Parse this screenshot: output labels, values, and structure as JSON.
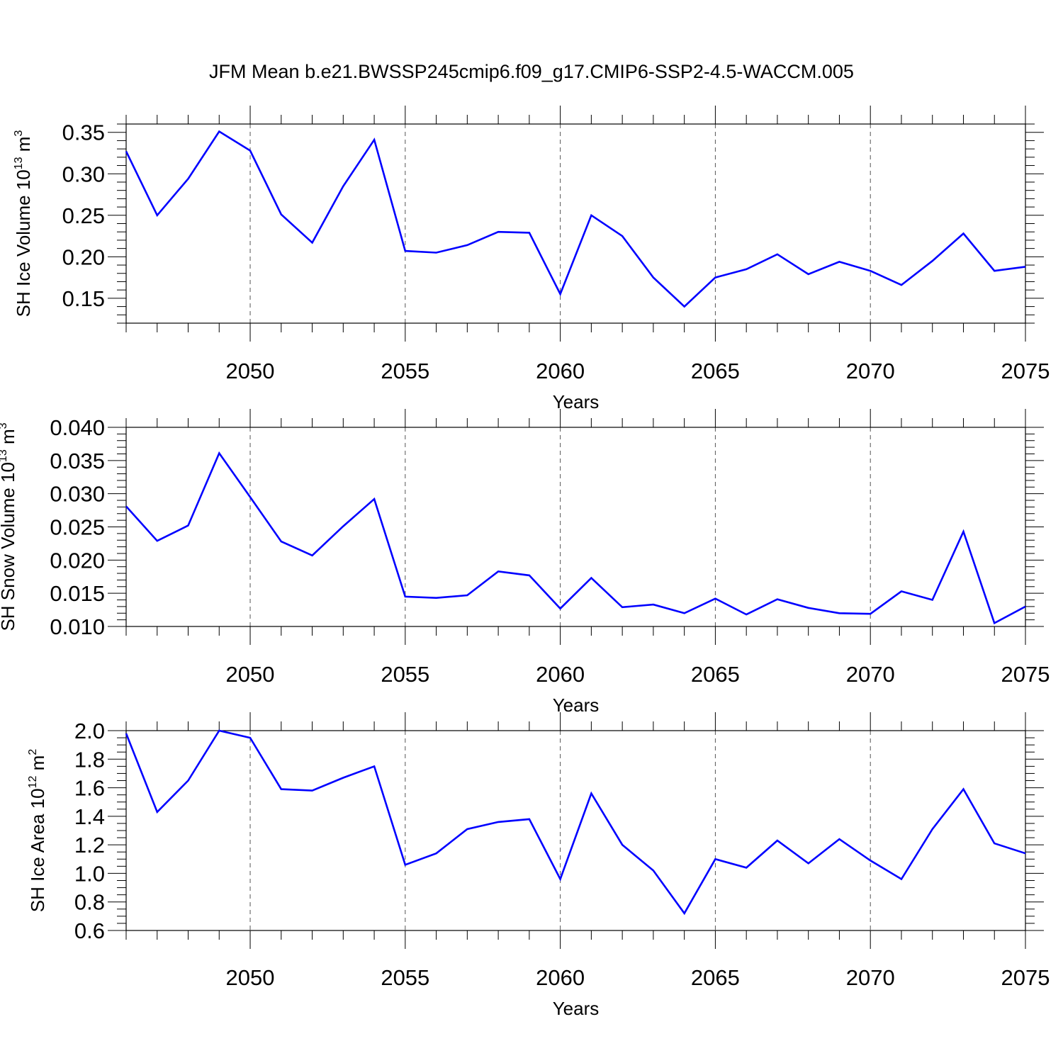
{
  "title": "JFM Mean b.e21.BWSSP245cmip6.f09_g17.CMIP6-SSP2-4.5-WACCM.005",
  "line_color": "#0000ff",
  "chart_data": [
    {
      "type": "line",
      "xlabel": "Years",
      "ylabel": "SH Ice Volume 10",
      "ylabel_exp": "13",
      "ylabel_unit": " m",
      "ylabel_unit_exp": "3",
      "xlim": [
        2046,
        2075
      ],
      "ylim": [
        0.12,
        0.36
      ],
      "xticks": [
        2050,
        2055,
        2060,
        2065,
        2070,
        2075
      ],
      "yticks": [
        0.15,
        0.2,
        0.25,
        0.3,
        0.35
      ],
      "ytick_labels": [
        "0.15",
        "0.20",
        "0.25",
        "0.30",
        "0.35"
      ],
      "series": [
        {
          "x": [
            2046,
            2047,
            2048,
            2049,
            2050,
            2051,
            2052,
            2053,
            2054,
            2055,
            2056,
            2057,
            2058,
            2059,
            2060,
            2061,
            2062,
            2063,
            2064,
            2065,
            2066,
            2067,
            2068,
            2069,
            2070,
            2071,
            2072,
            2073,
            2074,
            2075
          ],
          "y": [
            0.327,
            0.25,
            0.294,
            0.351,
            0.328,
            0.251,
            0.217,
            0.285,
            0.341,
            0.207,
            0.205,
            0.214,
            0.23,
            0.229,
            0.155,
            0.25,
            0.225,
            0.175,
            0.14,
            0.175,
            0.185,
            0.203,
            0.179,
            0.194,
            0.183,
            0.166,
            0.195,
            0.228,
            0.183,
            0.188
          ]
        }
      ]
    },
    {
      "type": "line",
      "xlabel": "Years",
      "ylabel": "SH Snow Volume 10",
      "ylabel_exp": "13",
      "ylabel_unit": " m",
      "ylabel_unit_exp": "3",
      "xlim": [
        2046,
        2075
      ],
      "ylim": [
        0.01,
        0.04
      ],
      "xticks": [
        2050,
        2055,
        2060,
        2065,
        2070,
        2075
      ],
      "yticks": [
        0.01,
        0.015,
        0.02,
        0.025,
        0.03,
        0.035,
        0.04
      ],
      "ytick_labels": [
        "0.010",
        "0.015",
        "0.020",
        "0.025",
        "0.030",
        "0.035",
        "0.040"
      ],
      "series": [
        {
          "x": [
            2046,
            2047,
            2048,
            2049,
            2050,
            2051,
            2052,
            2053,
            2054,
            2055,
            2056,
            2057,
            2058,
            2059,
            2060,
            2061,
            2062,
            2063,
            2064,
            2065,
            2066,
            2067,
            2068,
            2069,
            2070,
            2071,
            2072,
            2073,
            2074,
            2075
          ],
          "y": [
            0.0281,
            0.0229,
            0.0252,
            0.0361,
            0.0295,
            0.0228,
            0.0207,
            0.0251,
            0.0292,
            0.0145,
            0.0143,
            0.0147,
            0.0183,
            0.0177,
            0.0127,
            0.0173,
            0.0129,
            0.0133,
            0.012,
            0.0142,
            0.0118,
            0.0141,
            0.0128,
            0.012,
            0.0119,
            0.0153,
            0.014,
            0.0243,
            0.0105,
            0.013
          ]
        }
      ]
    },
    {
      "type": "line",
      "xlabel": "Years",
      "ylabel": "SH Ice Area 10",
      "ylabel_exp": "12",
      "ylabel_unit": " m",
      "ylabel_unit_exp": "2",
      "xlim": [
        2046,
        2075
      ],
      "ylim": [
        0.6,
        2.0
      ],
      "xticks": [
        2050,
        2055,
        2060,
        2065,
        2070,
        2075
      ],
      "yticks": [
        0.6,
        0.8,
        1.0,
        1.2,
        1.4,
        1.6,
        1.8,
        2.0
      ],
      "ytick_labels": [
        "0.6",
        "0.8",
        "1.0",
        "1.2",
        "1.4",
        "1.6",
        "1.8",
        "2.0"
      ],
      "series": [
        {
          "x": [
            2046,
            2047,
            2048,
            2049,
            2050,
            2051,
            2052,
            2053,
            2054,
            2055,
            2056,
            2057,
            2058,
            2059,
            2060,
            2061,
            2062,
            2063,
            2064,
            2065,
            2066,
            2067,
            2068,
            2069,
            2070,
            2071,
            2072,
            2073,
            2074,
            2075
          ],
          "y": [
            1.98,
            1.43,
            1.65,
            2.0,
            1.95,
            1.59,
            1.58,
            1.67,
            1.75,
            1.06,
            1.14,
            1.31,
            1.36,
            1.38,
            0.96,
            1.56,
            1.2,
            1.02,
            0.72,
            1.1,
            1.04,
            1.23,
            1.07,
            1.24,
            1.09,
            0.96,
            1.31,
            1.59,
            1.21,
            1.14
          ]
        }
      ]
    }
  ]
}
